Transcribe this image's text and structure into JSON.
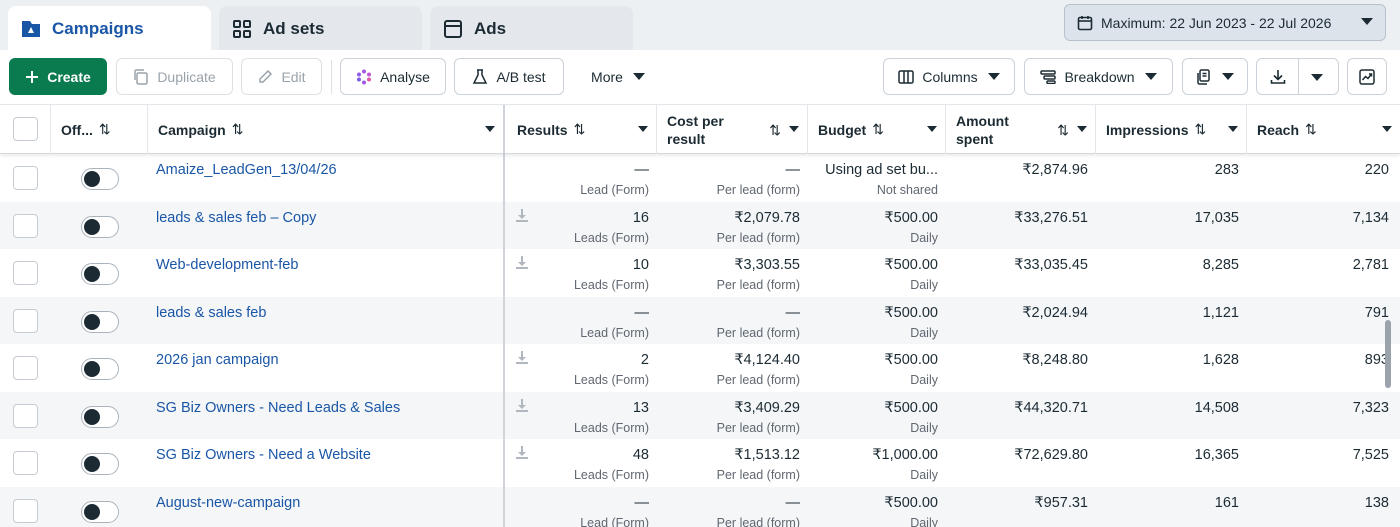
{
  "tabs": [
    {
      "label": "Campaigns",
      "icon": "campaigns-flag-icon"
    },
    {
      "label": "Ad sets",
      "icon": "grid-icon"
    },
    {
      "label": "Ads",
      "icon": "window-icon"
    }
  ],
  "date_range": "Maximum: 22 Jun 2023 - 22 Jul 2026",
  "toolbar": {
    "create": "Create",
    "duplicate": "Duplicate",
    "edit": "Edit",
    "analyse": "Analyse",
    "ab_test": "A/B test",
    "more": "More",
    "columns": "Columns",
    "breakdown": "Breakdown"
  },
  "columns": {
    "off": "Off...",
    "campaign": "Campaign",
    "results": "Results",
    "cost_per_result": "Cost per result",
    "budget": "Budget",
    "amount_spent": "Amount spent",
    "impressions": "Impressions",
    "reach": "Reach"
  },
  "rows": [
    {
      "name": "Amaize_LeadGen_13/04/26",
      "results": "—",
      "results_sub": "Lead (Form)",
      "cost": "—",
      "cost_sub": "Per lead (form)",
      "budget": "Using ad set bu...",
      "budget_sub": "Not shared",
      "spent": "₹2,874.96",
      "impressions": "283",
      "reach": "220",
      "has_download": false
    },
    {
      "name": "leads & sales feb – Copy",
      "results": "16",
      "results_sub": "Leads (Form)",
      "cost": "₹2,079.78",
      "cost_sub": "Per lead (form)",
      "budget": "₹500.00",
      "budget_sub": "Daily",
      "spent": "₹33,276.51",
      "impressions": "17,035",
      "reach": "7,134",
      "has_download": true
    },
    {
      "name": "Web-development-feb",
      "results": "10",
      "results_sub": "Leads (Form)",
      "cost": "₹3,303.55",
      "cost_sub": "Per lead (form)",
      "budget": "₹500.00",
      "budget_sub": "Daily",
      "spent": "₹33,035.45",
      "impressions": "8,285",
      "reach": "2,781",
      "has_download": true
    },
    {
      "name": "leads & sales feb",
      "results": "—",
      "results_sub": "Lead (Form)",
      "cost": "—",
      "cost_sub": "Per lead (form)",
      "budget": "₹500.00",
      "budget_sub": "Daily",
      "spent": "₹2,024.94",
      "impressions": "1,121",
      "reach": "791",
      "has_download": false
    },
    {
      "name": "2026 jan campaign",
      "results": "2",
      "results_sub": "Leads (Form)",
      "cost": "₹4,124.40",
      "cost_sub": "Per lead (form)",
      "budget": "₹500.00",
      "budget_sub": "Daily",
      "spent": "₹8,248.80",
      "impressions": "1,628",
      "reach": "893",
      "has_download": true
    },
    {
      "name": "SG Biz Owners - Need Leads & Sales",
      "results": "13",
      "results_sub": "Leads (Form)",
      "cost": "₹3,409.29",
      "cost_sub": "Per lead (form)",
      "budget": "₹500.00",
      "budget_sub": "Daily",
      "spent": "₹44,320.71",
      "impressions": "14,508",
      "reach": "7,323",
      "has_download": true
    },
    {
      "name": "SG Biz Owners - Need a Website",
      "results": "48",
      "results_sub": "Leads (Form)",
      "cost": "₹1,513.12",
      "cost_sub": "Per lead (form)",
      "budget": "₹1,000.00",
      "budget_sub": "Daily",
      "spent": "₹72,629.80",
      "impressions": "16,365",
      "reach": "7,525",
      "has_download": true
    },
    {
      "name": "August-new-campaign",
      "results": "—",
      "results_sub": "Lead (Form)",
      "cost": "—",
      "cost_sub": "Per lead (form)",
      "budget": "₹500.00",
      "budget_sub": "Daily",
      "spent": "₹957.31",
      "impressions": "161",
      "reach": "138",
      "has_download": false
    }
  ],
  "colors": {
    "accent": "#1a56a6",
    "create_bg": "#0a7a4f",
    "row_alt": "#f4f6f8"
  }
}
